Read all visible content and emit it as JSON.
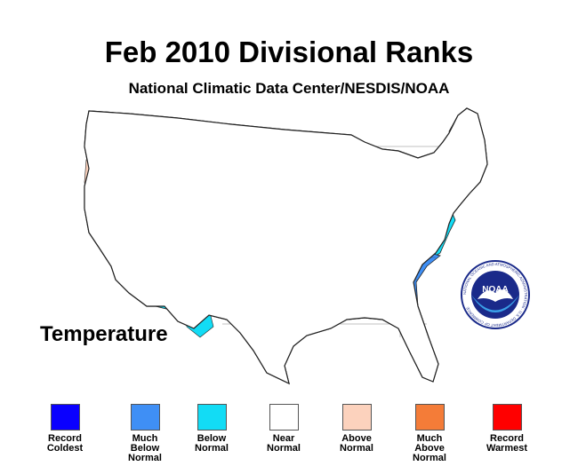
{
  "title": "Feb 2010 Divisional Ranks",
  "subtitle": "National Climatic Data Center/NESDIS/NOAA",
  "parameter_label": "Temperature",
  "logo": {
    "center_text": "NOAA",
    "ring_text": "NATIONAL OCEANIC AND ATMOSPHERIC ADMINISTRATION · U.S. DEPARTMENT OF COMMERCE",
    "icon": "noaa-seal-icon"
  },
  "colors": {
    "record_coldest": "#0a00ff",
    "much_below": "#3f8ff5",
    "below": "#12dcf5",
    "near": "#ffffff",
    "above": "#fcd2bd",
    "much_above": "#f47c38",
    "record_warmest": "#ff0000",
    "border": "#222222"
  },
  "legend": [
    {
      "key": "record_coldest",
      "label": "Record\nColdest",
      "color": "#0a00ff"
    },
    {
      "key": "much_below",
      "label": "Much\nBelow\nNormal",
      "color": "#3f8ff5"
    },
    {
      "key": "below",
      "label": "Below\nNormal",
      "color": "#12dcf5"
    },
    {
      "key": "near",
      "label": "Near\nNormal",
      "color": "#ffffff"
    },
    {
      "key": "above",
      "label": "Above\nNormal",
      "color": "#fcd2bd"
    },
    {
      "key": "much_above",
      "label": "Much\nAbove\nNormal",
      "color": "#f47c38"
    },
    {
      "key": "record_warmest",
      "label": "Record\nWarmest",
      "color": "#ff0000"
    }
  ]
}
